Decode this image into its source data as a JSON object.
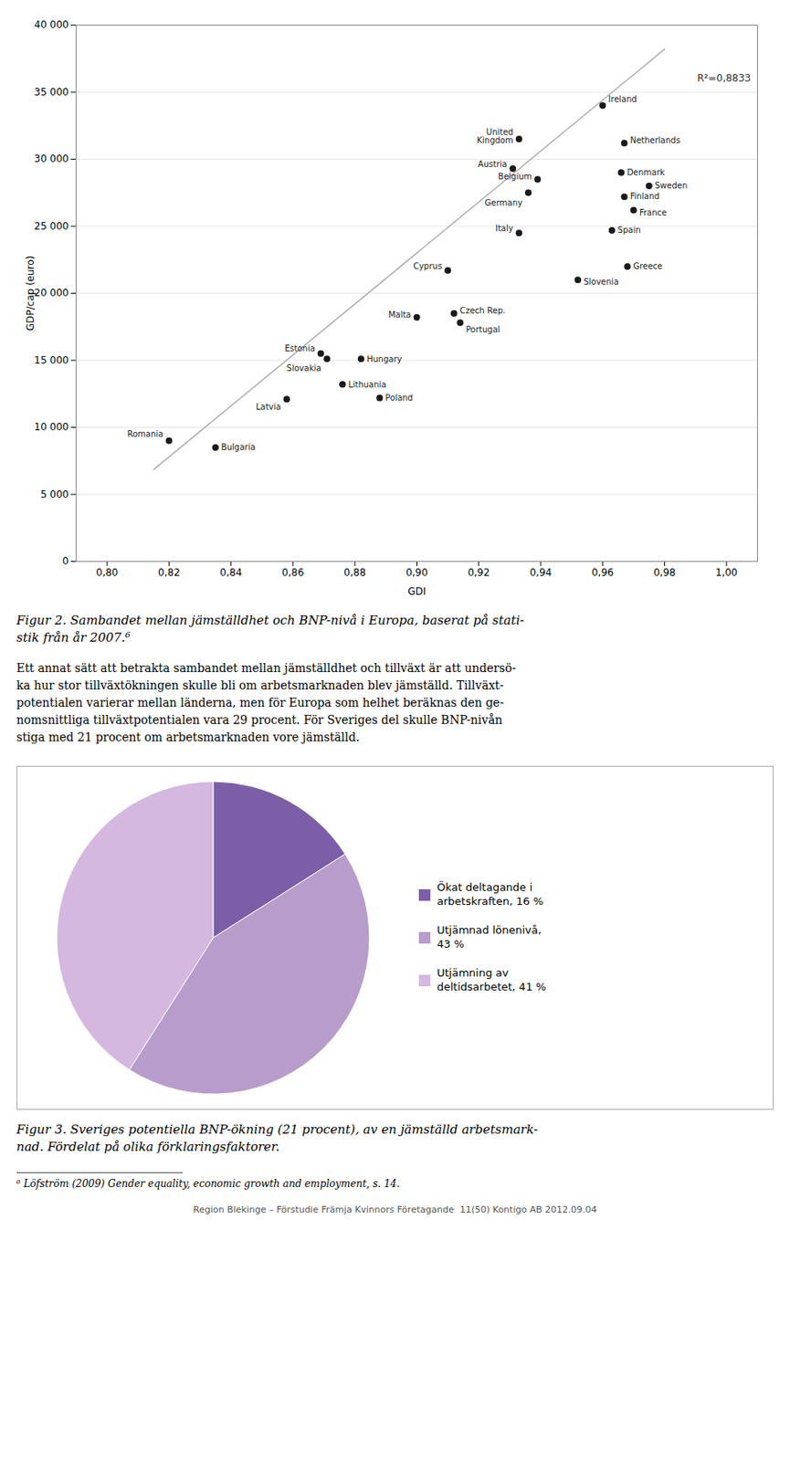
{
  "chart_data": [
    {
      "type": "scatter",
      "xlabel": "GDI",
      "ylabel": "GDP/cap (euro)",
      "xlim": [
        0.79,
        1.01
      ],
      "ylim": [
        0,
        40000
      ],
      "xticks": [
        {
          "value": 0.8,
          "label": "0,80"
        },
        {
          "value": 0.82,
          "label": "0,82"
        },
        {
          "value": 0.84,
          "label": "0,84"
        },
        {
          "value": 0.86,
          "label": "0,86"
        },
        {
          "value": 0.88,
          "label": "0,88"
        },
        {
          "value": 0.9,
          "label": "0,90"
        },
        {
          "value": 0.92,
          "label": "0,92"
        },
        {
          "value": 0.94,
          "label": "0,94"
        },
        {
          "value": 0.96,
          "label": "0,96"
        },
        {
          "value": 0.98,
          "label": "0,98"
        },
        {
          "value": 1.0,
          "label": "1,00"
        }
      ],
      "yticks": [
        0,
        {
          "value": 5000,
          "label": "5 000"
        },
        {
          "value": 10000,
          "label": "10 000"
        },
        {
          "value": 15000,
          "label": "15 000"
        },
        {
          "value": 20000,
          "label": "20 000"
        },
        {
          "value": 25000,
          "label": "25 000"
        },
        {
          "value": 30000,
          "label": "30 000"
        },
        {
          "value": 35000,
          "label": "35 000"
        },
        {
          "value": 40000,
          "label": "40 000"
        }
      ],
      "grid": true,
      "series": [
        {
          "type": "scatter",
          "color": "#1a1a1a",
          "point_labels": [
            "Ireland",
            "United\nKingdom",
            "Netherlands",
            "Austria",
            "Denmark",
            "Belgium",
            "Sweden",
            "Germany",
            "Finland",
            "France",
            "Italy",
            "Spain",
            "Cyprus",
            "Slovenia",
            "Greece",
            "Malta",
            "Czech Rep.",
            "Portugal",
            "Estonia",
            "Slovakia",
            "Hungary",
            "Lithuania",
            "Latvia",
            "Poland",
            "Romania",
            "Bulgaria"
          ],
          "x": [
            0.96,
            0.933,
            0.967,
            0.931,
            0.966,
            0.939,
            0.975,
            0.936,
            0.967,
            0.97,
            0.933,
            0.963,
            0.91,
            0.952,
            0.968,
            0.9,
            0.912,
            0.914,
            0.869,
            0.871,
            0.882,
            0.876,
            0.858,
            0.888,
            0.82,
            0.835
          ],
          "values": [
            34000,
            31500,
            31200,
            29300,
            29000,
            28500,
            28000,
            27500,
            27200,
            26200,
            24500,
            24700,
            21700,
            21000,
            22000,
            18200,
            18500,
            17800,
            15500,
            15100,
            15100,
            13200,
            12100,
            12200,
            9000,
            8500
          ]
        },
        {
          "type": "line",
          "color": "#aaaaaa",
          "x": [
            0.815,
            0.98
          ],
          "values": [
            6850,
            38200
          ]
        }
      ],
      "annotations": [
        "R²=0,8833"
      ],
      "caption": "Figur 2. Sambandet mellan jämställdhet och BNP-nivå i Europa, baserat på stati-\nstik från år 2007.⁶",
      "text": "Ett annat sätt att betrakta sambandet mellan jämställdhet och tillväxt är att undersö-\nka hur stor tillväxtökningen skulle bli om arbetsmarknaden blev jämställd. Tillväxt-\npotentialen varierar mellan länderna, men för Europa som helhet beräknas den ge-\nnomsnittliga tillväxtpotentialen vara 29 procent. För Sveriges del skulle BNP-nivån\nstiga med 21 procent om arbetsmarknaden vore jämställd."
    },
    {
      "type": "pie",
      "categories": [
        "Ökat deltagande i\narbetskraften, 16 %",
        "Utjämnad lönenivå,\n43 %",
        "Utjämning av\ndeltidsarbetet, 41 %"
      ],
      "values": [
        16,
        43,
        41
      ],
      "colors": [
        "#7b5ea7",
        "#b89ccc",
        "#d4b8e0"
      ],
      "legend": "right",
      "caption": "Figur 3. Sveriges potentiella BNP-ökning (21 procent), av en jämställd arbetsmark-\nnad. Fördelat på olika förklaringsfaktorer.",
      "footnote": "⁶ Löfström (2009) Gender equality, economic growth and employment, s. 14.",
      "footer": "Region Blekinge – Förstudie Främja Kvinnors Företagande  11(50) Kontigo AB 2012.09.04"
    }
  ]
}
